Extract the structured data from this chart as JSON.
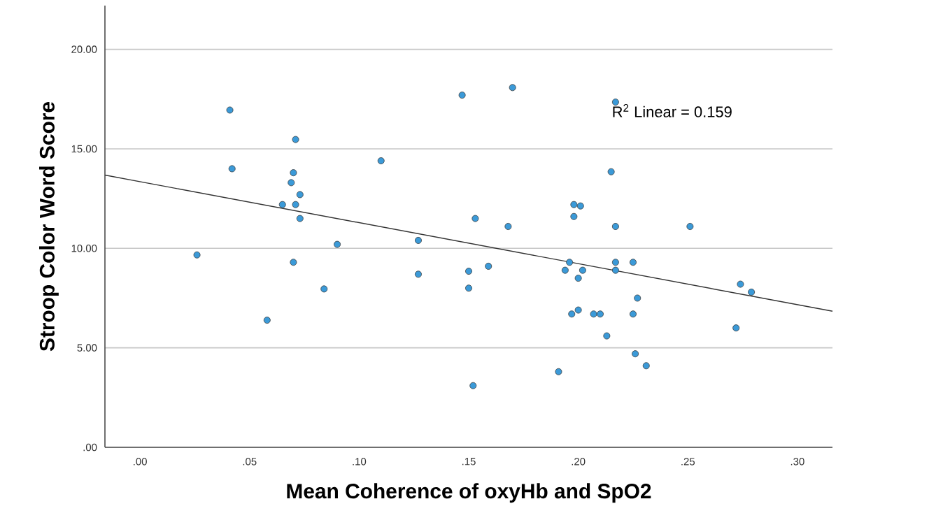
{
  "chart_data": {
    "type": "scatter",
    "xlabel": "Mean Coherence of oxyHb and SpO2",
    "ylabel": "Stroop Color Word Score",
    "xlim": [
      -0.016,
      0.316
    ],
    "ylim": [
      0,
      22.2
    ],
    "xticks": [
      {
        "value": 0,
        "label": ".00"
      },
      {
        "value": 0.05,
        "label": ".05"
      },
      {
        "value": 0.1,
        "label": ".10"
      },
      {
        "value": 0.15,
        "label": ".15"
      },
      {
        "value": 0.2,
        "label": ".20"
      },
      {
        "value": 0.25,
        "label": ".25"
      },
      {
        "value": 0.3,
        "label": ".30"
      }
    ],
    "yticks": [
      {
        "value": 0,
        "label": ".00"
      },
      {
        "value": 5,
        "label": "5.00"
      },
      {
        "value": 10,
        "label": "10.00"
      },
      {
        "value": 15,
        "label": "15.00"
      },
      {
        "value": 20,
        "label": "20.00"
      }
    ],
    "grid": "y",
    "marker": "circle",
    "annotations": [
      "R$^{2}$ Linear = 0.159"
    ],
    "series": [
      {
        "type": "scatter",
        "color": "#3b9ad8",
        "x": [
          0.041,
          0.042,
          0.071,
          0.07,
          0.069,
          0.073,
          0.065,
          0.071,
          0.073,
          0.11,
          0.026,
          0.07,
          0.09,
          0.084,
          0.058,
          0.127,
          0.127,
          0.147,
          0.15,
          0.15,
          0.152,
          0.17,
          0.217,
          0.215,
          0.198,
          0.201,
          0.198,
          0.153,
          0.168,
          0.217,
          0.251,
          0.159,
          0.196,
          0.194,
          0.202,
          0.2,
          0.217,
          0.217,
          0.225,
          0.274,
          0.279,
          0.227,
          0.197,
          0.2,
          0.207,
          0.21,
          0.225,
          0.213,
          0.272,
          0.226,
          0.231,
          0.191
        ],
        "values": [
          16.95,
          14.0,
          15.47,
          13.8,
          13.3,
          12.7,
          12.2,
          12.2,
          11.5,
          14.4,
          9.67,
          9.3,
          10.2,
          7.96,
          6.39,
          10.4,
          8.7,
          17.7,
          8.85,
          8.0,
          3.1,
          18.08,
          17.35,
          13.85,
          12.2,
          12.13,
          11.6,
          11.5,
          11.1,
          11.1,
          11.1,
          9.1,
          9.3,
          8.9,
          8.9,
          8.5,
          9.3,
          8.9,
          9.3,
          8.2,
          7.8,
          7.5,
          6.7,
          6.9,
          6.7,
          6.7,
          6.7,
          5.6,
          6.0,
          4.7,
          4.1,
          3.8
        ]
      },
      {
        "type": "line",
        "color": "#333333",
        "marker": "none",
        "x": [
          -0.016,
          0.316
        ],
        "values": [
          13.68,
          6.84
        ]
      }
    ]
  }
}
